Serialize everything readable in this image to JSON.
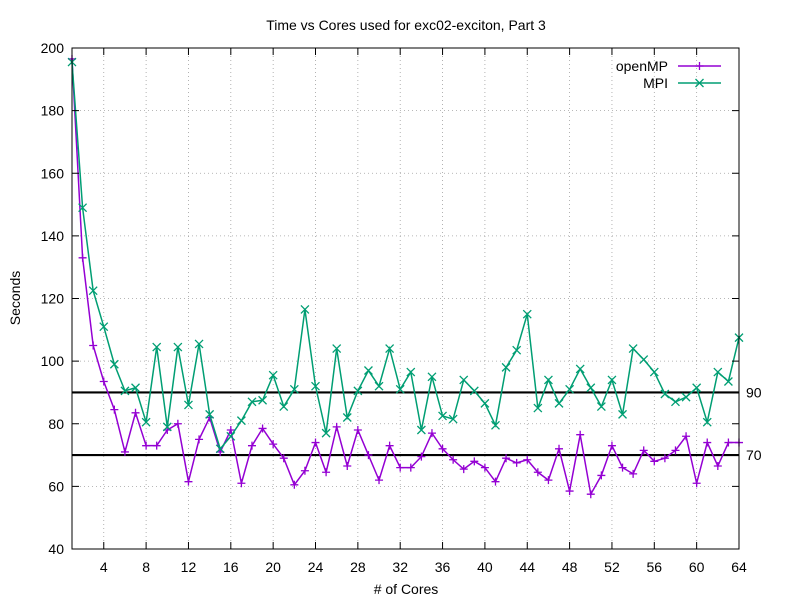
{
  "chart_data": {
    "type": "line",
    "title": "Time vs Cores used for exc02-exciton, Part 3",
    "xlabel": "# of Cores",
    "ylabel": "Seconds",
    "xlim": [
      1,
      64
    ],
    "ylim": [
      40,
      200
    ],
    "xticks": [
      4,
      8,
      12,
      16,
      20,
      24,
      28,
      32,
      36,
      40,
      44,
      48,
      52,
      56,
      60,
      64
    ],
    "yticks": [
      40,
      60,
      80,
      100,
      120,
      140,
      160,
      180,
      200
    ],
    "grid": true,
    "legend_position": "top-right",
    "x": [
      1,
      2,
      3,
      4,
      5,
      6,
      7,
      8,
      9,
      10,
      11,
      12,
      13,
      14,
      15,
      16,
      17,
      18,
      19,
      20,
      21,
      22,
      23,
      24,
      25,
      26,
      27,
      28,
      29,
      30,
      31,
      32,
      33,
      34,
      35,
      36,
      37,
      38,
      39,
      40,
      41,
      42,
      43,
      44,
      45,
      46,
      47,
      48,
      49,
      50,
      51,
      52,
      53,
      54,
      55,
      56,
      57,
      58,
      59,
      60,
      61,
      62,
      63,
      64
    ],
    "series": [
      {
        "name": "openMP",
        "color": "#9400d3",
        "marker": "plus",
        "values": [
          196.5,
          133,
          105,
          93.5,
          84.5,
          71,
          83.5,
          73,
          73,
          78,
          80,
          61.5,
          75,
          82,
          71,
          78,
          61,
          73,
          78.5,
          73.5,
          69,
          60.5,
          65,
          74,
          64.5,
          79,
          66.5,
          78,
          70,
          62,
          73,
          66,
          66,
          69.5,
          77,
          72,
          68.5,
          65.5,
          68,
          66,
          61.5,
          69,
          67.5,
          68.5,
          64.5,
          62,
          72,
          58.5,
          76.5,
          57.5,
          63.5,
          73,
          66,
          64,
          71.5,
          68,
          69,
          71.5,
          76,
          61,
          74,
          66.5,
          74,
          74
        ]
      },
      {
        "name": "MPI",
        "color": "#009e73",
        "marker": "cross",
        "values": [
          195.5,
          149,
          122.5,
          111,
          99,
          90.5,
          91.5,
          80.5,
          104.5,
          79,
          104.5,
          86,
          105.5,
          83,
          72,
          76,
          81,
          87,
          87.5,
          95.5,
          85.5,
          91,
          116.5,
          92,
          77,
          104,
          82,
          90.5,
          97,
          92,
          104,
          91,
          96.5,
          78,
          95,
          82.5,
          81.5,
          94,
          90.5,
          86.5,
          79.5,
          98,
          103.5,
          115,
          85,
          94,
          86.5,
          91,
          97.5,
          91.5,
          85.5,
          94,
          83,
          104,
          100.5,
          96.5,
          89.5,
          87,
          88.5,
          91.5,
          80.5,
          96.5,
          93.5,
          107.5
        ]
      }
    ],
    "reference_lines": [
      {
        "y": 90,
        "label": "90"
      },
      {
        "y": 70,
        "label": "70"
      }
    ]
  }
}
